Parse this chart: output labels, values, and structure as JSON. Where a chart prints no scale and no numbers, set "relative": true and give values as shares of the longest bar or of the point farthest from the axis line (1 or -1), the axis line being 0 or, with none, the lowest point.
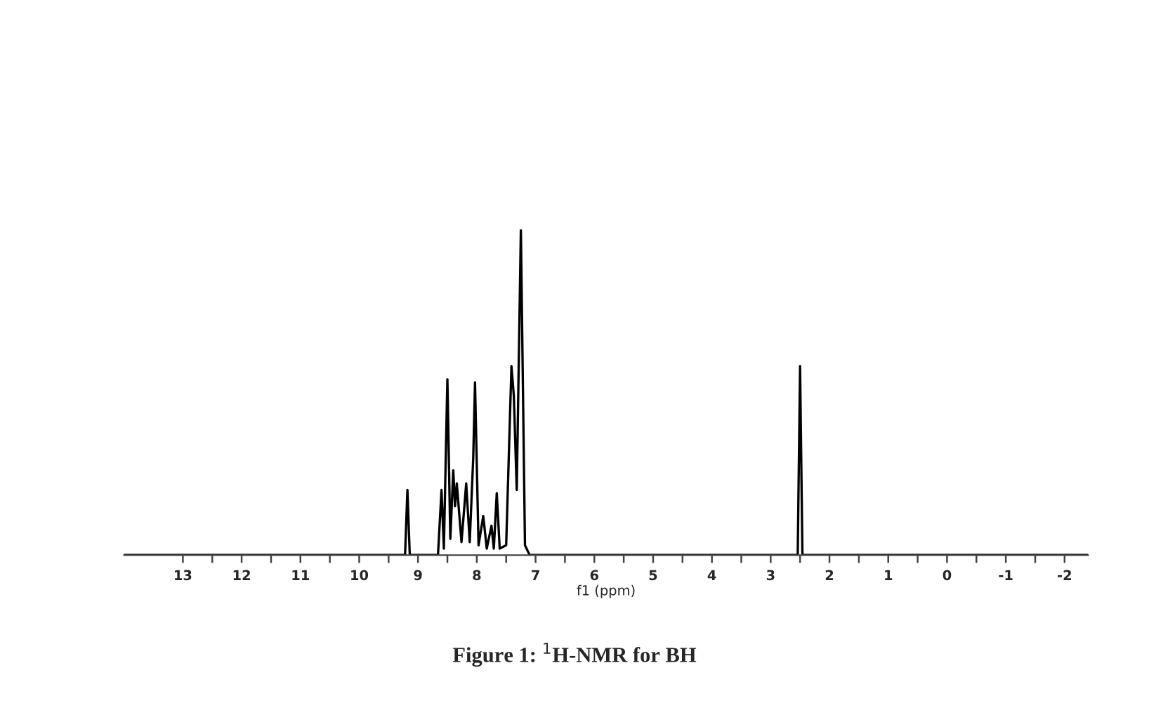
{
  "chart_data": {
    "type": "line",
    "relative": true,
    "xlabel": "f1 (ppm)",
    "annotations": [
      "Figure 1: $^{1}$H-NMR for BH"
    ],
    "x": [
      14.0,
      9.3,
      9.22,
      9.18,
      9.14,
      8.66,
      8.6,
      8.56,
      8.5,
      8.45,
      8.4,
      8.37,
      8.34,
      8.26,
      8.18,
      8.12,
      8.06,
      8.03,
      7.97,
      7.89,
      7.83,
      7.75,
      7.71,
      7.66,
      7.61,
      7.5,
      7.41,
      7.37,
      7.32,
      7.25,
      7.18,
      7.1,
      2.6,
      2.54,
      2.5,
      2.46,
      2.4,
      -2.4
    ],
    "series": [
      {
        "color": "#000000",
        "values": [
          0,
          0,
          0,
          0.2,
          0,
          0,
          0.2,
          0.02,
          0.54,
          0.05,
          0.26,
          0.15,
          0.22,
          0.04,
          0.22,
          0.04,
          0.3,
          0.53,
          0.03,
          0.12,
          0.02,
          0.09,
          0.02,
          0.19,
          0.02,
          0.03,
          0.58,
          0.49,
          0.2,
          1.0,
          0.03,
          0,
          0,
          0,
          0.58,
          0,
          0,
          0
        ]
      }
    ],
    "xlim": [
      14.0,
      -2.4
    ],
    "xticks": [
      13,
      {
        "value": 12.5,
        "label": null
      },
      12,
      {
        "value": 11.5,
        "label": null
      },
      11,
      {
        "value": 10.5,
        "label": null
      },
      10,
      {
        "value": 9.5,
        "label": null
      },
      9,
      {
        "value": 8.5,
        "label": null
      },
      8,
      {
        "value": 7.5,
        "label": null
      },
      7,
      {
        "value": 6.5,
        "label": null
      },
      6,
      {
        "value": 5.5,
        "label": null
      },
      5,
      {
        "value": 4.5,
        "label": null
      },
      4,
      {
        "value": 3.5,
        "label": null
      },
      3,
      {
        "value": 2.5,
        "label": null
      },
      2,
      {
        "value": 1.5,
        "label": null
      },
      1,
      {
        "value": 0.5,
        "label": null
      },
      0,
      {
        "value": -0.5,
        "label": null
      },
      -1,
      {
        "value": -1.5,
        "label": null
      },
      -2
    ],
    "grid": false,
    "legend": false
  }
}
